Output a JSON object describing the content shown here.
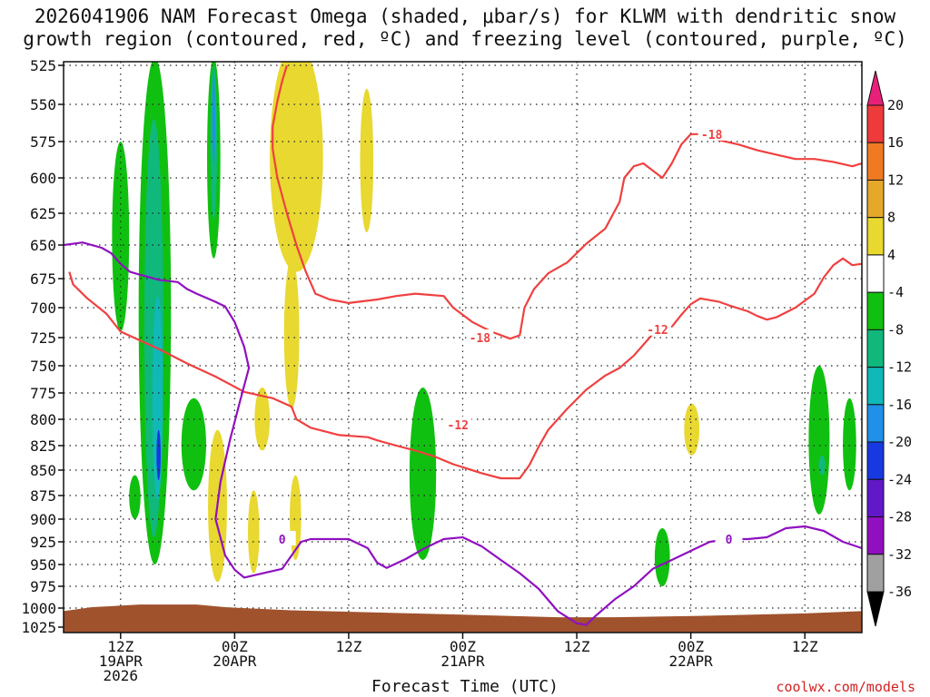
{
  "chart_data": {
    "type": "time-height cross section",
    "title_line1": "2026041906 NAM Forecast Omega (shaded, μbar/s) for KLWM with dendritic snow",
    "title_line2": "growth region (contoured, red, ºC) and freezing level (contoured, purple, ºC)",
    "xlabel": "Forecast Time (UTC)",
    "credit": "coolwx.com/models",
    "y_levels_mb": [
      525,
      550,
      575,
      600,
      625,
      650,
      675,
      700,
      725,
      750,
      775,
      800,
      825,
      850,
      875,
      900,
      925,
      950,
      975,
      1000,
      1025
    ],
    "x_range_hours": [
      0,
      84
    ],
    "x_ticks": [
      {
        "hour": 6,
        "lines": [
          "12Z",
          "19APR",
          "2026"
        ]
      },
      {
        "hour": 18,
        "lines": [
          "00Z",
          "20APR"
        ]
      },
      {
        "hour": 30,
        "lines": [
          "12Z"
        ]
      },
      {
        "hour": 42,
        "lines": [
          "00Z",
          "21APR"
        ]
      },
      {
        "hour": 54,
        "lines": [
          "12Z"
        ]
      },
      {
        "hour": 66,
        "lines": [
          "00Z",
          "22APR"
        ]
      },
      {
        "hour": 78,
        "lines": [
          "12Z"
        ]
      }
    ],
    "colorbar": {
      "labels": [
        "20",
        "16",
        "12",
        "8",
        "4",
        "-4",
        "-8",
        "-12",
        "-16",
        "-20",
        "-24",
        "-28",
        "-32",
        "-36"
      ],
      "colors": [
        "#e8207a",
        "#ee3a3a",
        "#f07a22",
        "#e6a82a",
        "#e8d830",
        "#ffffff",
        "#10c010",
        "#10b87c",
        "#10b8b8",
        "#2090e8",
        "#1838e0",
        "#6018c8",
        "#9010c0",
        "#a0a0a0",
        "#000000"
      ]
    },
    "contours": {
      "snow_minus12": {
        "label": "-12",
        "color": "#f04040",
        "points": [
          [
            0.6,
            670
          ],
          [
            1,
            680
          ],
          [
            2.5,
            692
          ],
          [
            4.5,
            705
          ],
          [
            6,
            720
          ],
          [
            10,
            735
          ],
          [
            13,
            748
          ],
          [
            16,
            760
          ],
          [
            19,
            774
          ],
          [
            22,
            780
          ],
          [
            24,
            788
          ],
          [
            24.5,
            800
          ],
          [
            26,
            808
          ],
          [
            29,
            815
          ],
          [
            32,
            817
          ],
          [
            33,
            820
          ],
          [
            35,
            825
          ],
          [
            37,
            830
          ],
          [
            39,
            836
          ],
          [
            41,
            844
          ],
          [
            44,
            853
          ],
          [
            46,
            858
          ],
          [
            48,
            858
          ],
          [
            49,
            845
          ],
          [
            50,
            826
          ],
          [
            51,
            810
          ],
          [
            52,
            800
          ],
          [
            53,
            790
          ],
          [
            55,
            772
          ],
          [
            57,
            759
          ],
          [
            58.5,
            752
          ],
          [
            60,
            741
          ],
          [
            62,
            722
          ],
          [
            63,
            716
          ],
          [
            64,
            716
          ]
        ]
      },
      "snow_minus12_b": {
        "label": "-12",
        "color": "#f04040",
        "points": [
          [
            64,
            716
          ],
          [
            65,
            706
          ],
          [
            66,
            697
          ],
          [
            67,
            692
          ],
          [
            69,
            695
          ],
          [
            70,
            698
          ],
          [
            72,
            703
          ],
          [
            73,
            707
          ],
          [
            74,
            710
          ],
          [
            75,
            708
          ],
          [
            77,
            700
          ],
          [
            79,
            688
          ],
          [
            80,
            674
          ],
          [
            81,
            665
          ],
          [
            82,
            660
          ],
          [
            83,
            665
          ],
          [
            84,
            664
          ]
        ]
      },
      "snow_minus18": {
        "label": "-18",
        "color": "#f04040",
        "points": [
          [
            23.5,
            525
          ],
          [
            23,
            535
          ],
          [
            22.5,
            548
          ],
          [
            22,
            565
          ],
          [
            22,
            580
          ],
          [
            22.5,
            600
          ],
          [
            23.5,
            625
          ],
          [
            24.5,
            650
          ],
          [
            25.5,
            670
          ],
          [
            26.5,
            688
          ],
          [
            28,
            693
          ],
          [
            30,
            696
          ],
          [
            33,
            693
          ],
          [
            35,
            690
          ],
          [
            37,
            688
          ],
          [
            40,
            690
          ],
          [
            41,
            700
          ],
          [
            43,
            712
          ],
          [
            45,
            720
          ],
          [
            47,
            726
          ],
          [
            48,
            723
          ],
          [
            48.5,
            700
          ],
          [
            49.5,
            684
          ],
          [
            51,
            671
          ],
          [
            53,
            663
          ],
          [
            55,
            649
          ],
          [
            57,
            637
          ],
          [
            58.5,
            617
          ],
          [
            59,
            600
          ],
          [
            60,
            592
          ],
          [
            61,
            590
          ],
          [
            62,
            595
          ],
          [
            63,
            600
          ],
          [
            64,
            590
          ],
          [
            65,
            577
          ],
          [
            66,
            570
          ],
          [
            67,
            570
          ],
          [
            69,
            574
          ],
          [
            71,
            577
          ],
          [
            73,
            581
          ],
          [
            75,
            584
          ],
          [
            77,
            587
          ],
          [
            79,
            587
          ],
          [
            81,
            589
          ],
          [
            83,
            592
          ],
          [
            84,
            590
          ]
        ]
      },
      "freezing_0": {
        "label": "0",
        "color": "#9010c0",
        "points": [
          [
            0,
            650
          ],
          [
            2,
            648
          ],
          [
            4,
            652
          ],
          [
            5,
            656
          ],
          [
            6,
            664
          ],
          [
            7,
            670
          ],
          [
            8,
            672
          ],
          [
            10,
            676
          ],
          [
            12,
            678
          ],
          [
            13,
            684
          ],
          [
            14,
            688
          ],
          [
            16,
            695
          ],
          [
            17,
            699
          ],
          [
            18,
            712
          ],
          [
            19,
            733
          ],
          [
            19.5,
            752
          ],
          [
            18.5,
            785
          ],
          [
            17.5,
            820
          ],
          [
            16.5,
            862
          ],
          [
            16,
            900
          ],
          [
            17,
            940
          ],
          [
            18,
            956
          ],
          [
            19,
            965
          ],
          [
            21,
            960
          ],
          [
            23,
            955
          ],
          [
            24,
            940
          ],
          [
            25,
            925
          ],
          [
            26,
            922
          ],
          [
            28,
            922
          ],
          [
            30,
            922
          ],
          [
            32,
            932
          ],
          [
            33,
            948
          ],
          [
            34,
            954
          ],
          [
            36,
            944
          ],
          [
            38,
            932
          ],
          [
            40,
            922
          ],
          [
            42,
            920
          ],
          [
            44,
            930
          ],
          [
            46,
            945
          ],
          [
            48,
            960
          ],
          [
            50,
            978
          ],
          [
            52,
            1004
          ],
          [
            54,
            1020
          ],
          [
            55,
            1022
          ],
          [
            56,
            1010
          ],
          [
            58,
            990
          ],
          [
            60,
            975
          ],
          [
            62,
            955
          ],
          [
            64,
            945
          ],
          [
            66,
            935
          ],
          [
            68,
            925
          ],
          [
            70,
            922
          ],
          [
            72,
            922
          ],
          [
            74,
            920
          ],
          [
            76,
            910
          ],
          [
            78,
            908
          ],
          [
            80,
            913
          ],
          [
            82,
            925
          ],
          [
            84,
            932
          ]
        ]
      }
    }
  }
}
